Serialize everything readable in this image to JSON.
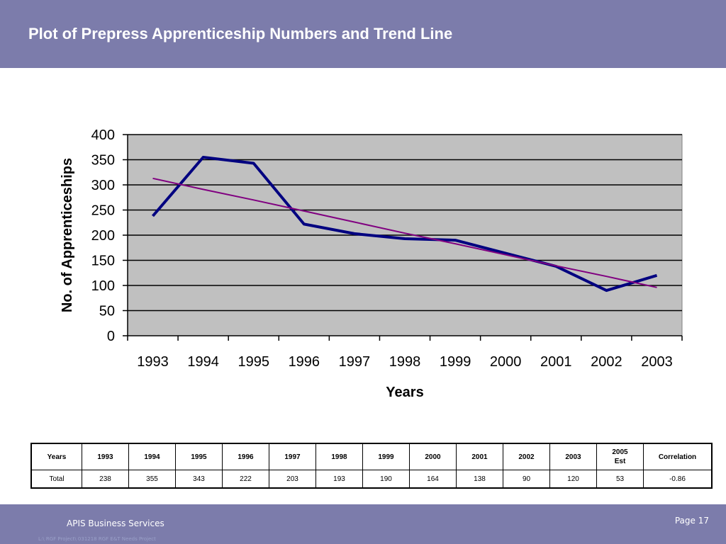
{
  "slide": {
    "title": "Plot of Prepress Apprenticeship Numbers and Trend Line"
  },
  "chart_data": {
    "type": "line",
    "xlabel": "Years",
    "ylabel": "No. of Apprenticeships",
    "categories": [
      "1993",
      "1994",
      "1995",
      "1996",
      "1997",
      "1998",
      "1999",
      "2000",
      "2001",
      "2002",
      "2003"
    ],
    "ylim": [
      0,
      400
    ],
    "yticks": [
      0,
      50,
      100,
      150,
      200,
      250,
      300,
      350,
      400
    ],
    "grid": true,
    "legend": "none",
    "plot_background": "#c0c0c0",
    "series": [
      {
        "color": "#000080",
        "values": [
          238,
          355,
          343,
          222,
          203,
          193,
          190,
          164,
          138,
          90,
          120
        ]
      },
      {
        "color": "#800080",
        "trend": "linear",
        "values": [
          313,
          291,
          270,
          248,
          226,
          204,
          183,
          161,
          139,
          118,
          96
        ]
      }
    ]
  },
  "table": {
    "headers": [
      "Years",
      "1993",
      "1994",
      "1995",
      "1996",
      "1997",
      "1998",
      "1999",
      "2000",
      "2001",
      "2002",
      "2003",
      "2005 Est",
      "Correlation"
    ],
    "rows": [
      [
        "Total",
        "238",
        "355",
        "343",
        "222",
        "203",
        "193",
        "190",
        "164",
        "138",
        "90",
        "120",
        "53",
        "-0.86"
      ]
    ]
  },
  "footer": {
    "company": "APIS Business Services",
    "page": "Page 17",
    "path": "L:\\ RGF Project\\ 031218 RGF E&T Needs Project"
  },
  "colors": {
    "header_band": "#7c7cab",
    "footer_band": "#7c7cab"
  }
}
